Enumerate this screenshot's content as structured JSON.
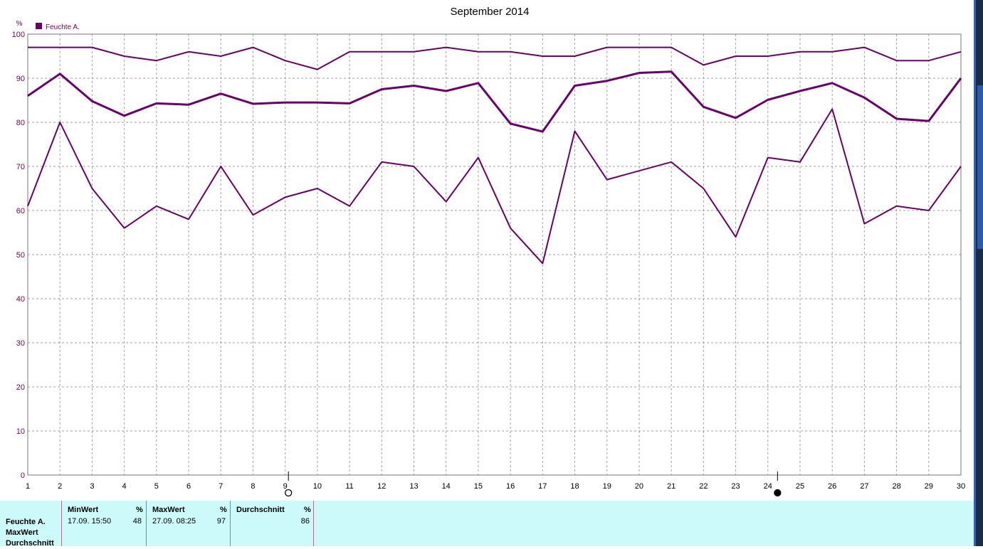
{
  "chart_data": {
    "type": "line",
    "title": "September 2014",
    "ylabel": "%",
    "ylim": [
      0,
      100
    ],
    "yticks": [
      0,
      10,
      20,
      30,
      40,
      50,
      60,
      70,
      80,
      90,
      100
    ],
    "x": [
      1,
      2,
      3,
      4,
      5,
      6,
      7,
      8,
      9,
      10,
      11,
      12,
      13,
      14,
      15,
      16,
      17,
      18,
      19,
      20,
      21,
      22,
      23,
      24,
      25,
      26,
      27,
      28,
      29,
      30
    ],
    "legend": {
      "label": "Feuchte A.",
      "position": "top-left",
      "color": "#6a006a"
    },
    "grid": true,
    "series": [
      {
        "values": [
          97,
          97,
          97,
          95,
          94,
          96,
          95,
          97,
          94,
          92,
          96,
          96,
          96,
          97,
          96,
          96,
          95,
          95,
          97,
          97,
          97,
          93,
          95,
          95,
          96,
          96,
          97,
          94,
          94,
          96
        ]
      },
      {
        "values": [
          86,
          91,
          84.8,
          81.5,
          84.3,
          84,
          86.5,
          84.2,
          84.5,
          84.5,
          84.3,
          87.5,
          88.3,
          87.1,
          88.9,
          79.7,
          77.9,
          88.3,
          89.4,
          91.2,
          91.5,
          83.5,
          81,
          85.1,
          87.1,
          88.9,
          85.6,
          80.8,
          80.3,
          90
        ]
      },
      {
        "values": [
          61,
          80,
          65,
          56,
          61,
          58,
          70,
          59,
          63,
          65,
          61,
          71,
          70,
          62,
          72,
          56,
          48,
          78,
          67,
          69,
          71,
          65,
          54,
          72,
          71,
          83,
          57,
          61,
          60,
          70
        ]
      }
    ],
    "moon_markers": [
      {
        "phase": "full-moon",
        "x": 9.1
      },
      {
        "phase": "new-moon",
        "x": 24.3
      }
    ]
  },
  "colors": {
    "series": "#6a006a",
    "axis_text": "#7a0050",
    "grid": "#a0a0a0",
    "stats_bg": "#ccf9f9"
  },
  "stats": {
    "row_labels": [
      "Feuchte A.",
      "MaxWert",
      "Durchschnitt"
    ],
    "columns": [
      {
        "header": "MinWert",
        "unit": "%",
        "when": "17.09.  15:50",
        "value": "48"
      },
      {
        "header": "MaxWert",
        "unit": "%",
        "when": "27.09.  08:25",
        "value": "97"
      },
      {
        "header": "Durchschnitt",
        "unit": "%",
        "when": "",
        "value": "86"
      }
    ]
  }
}
